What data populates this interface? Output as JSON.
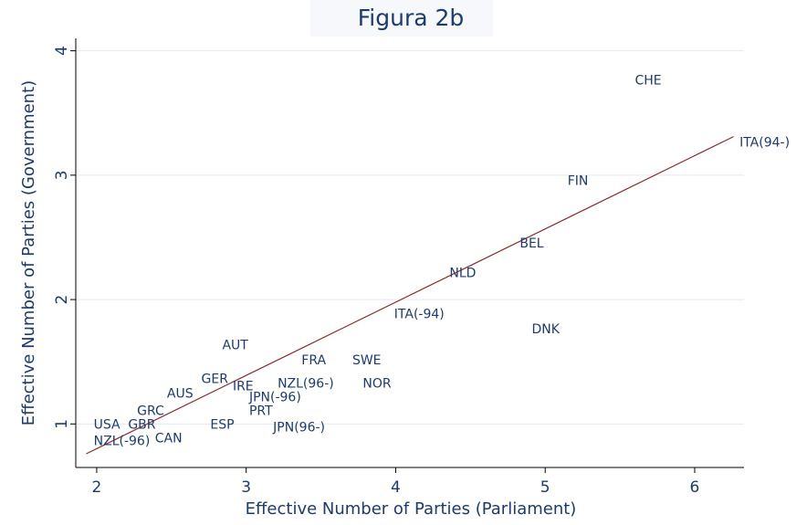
{
  "chart_data": {
    "type": "scatter",
    "title": "Figura 2b",
    "x_label": "Effective Number of Parties (Parliament)",
    "y_label": "Effective Number of Parties (Government)",
    "xlim": [
      1.86,
      6.33
    ],
    "ylim": [
      0.65,
      4.1
    ],
    "xticks": [
      2,
      3,
      4,
      5,
      6
    ],
    "yticks": [
      1,
      2,
      3,
      4
    ],
    "grid": true,
    "color": "#1c3b6e",
    "points": [
      {
        "label": "CHE",
        "x": 5.6,
        "y": 3.76
      },
      {
        "label": "ITA(94-)",
        "x": 6.3,
        "y": 3.26
      },
      {
        "label": "FIN",
        "x": 5.15,
        "y": 2.95
      },
      {
        "label": "BEL",
        "x": 4.83,
        "y": 2.45
      },
      {
        "label": "NLD",
        "x": 4.36,
        "y": 2.21
      },
      {
        "label": "ITA(-94)",
        "x": 3.99,
        "y": 1.88
      },
      {
        "label": "DNK",
        "x": 4.91,
        "y": 1.76
      },
      {
        "label": "AUT",
        "x": 2.84,
        "y": 1.63
      },
      {
        "label": "FRA",
        "x": 3.37,
        "y": 1.51
      },
      {
        "label": "SWE",
        "x": 3.71,
        "y": 1.51
      },
      {
        "label": "GER",
        "x": 2.7,
        "y": 1.36
      },
      {
        "label": "IRE",
        "x": 2.91,
        "y": 1.3
      },
      {
        "label": "NZL(96-)",
        "x": 3.21,
        "y": 1.32
      },
      {
        "label": "NOR",
        "x": 3.78,
        "y": 1.32
      },
      {
        "label": "AUS",
        "x": 2.47,
        "y": 1.24
      },
      {
        "label": "JPN(-96)",
        "x": 3.02,
        "y": 1.21
      },
      {
        "label": "GRC",
        "x": 2.27,
        "y": 1.1
      },
      {
        "label": "PRT",
        "x": 3.02,
        "y": 1.1
      },
      {
        "label": "USA",
        "x": 1.98,
        "y": 0.99
      },
      {
        "label": "GBR",
        "x": 2.21,
        "y": 0.99
      },
      {
        "label": "ESP",
        "x": 2.76,
        "y": 0.99
      },
      {
        "label": "JPN(96-)",
        "x": 3.18,
        "y": 0.97
      },
      {
        "label": "CAN",
        "x": 2.39,
        "y": 0.88
      },
      {
        "label": "NZL(-96)",
        "x": 1.98,
        "y": 0.86
      }
    ],
    "fit_line": {
      "x": [
        1.93,
        6.26
      ],
      "y": [
        0.76,
        3.31
      ],
      "color": "#8b2a2a"
    }
  }
}
